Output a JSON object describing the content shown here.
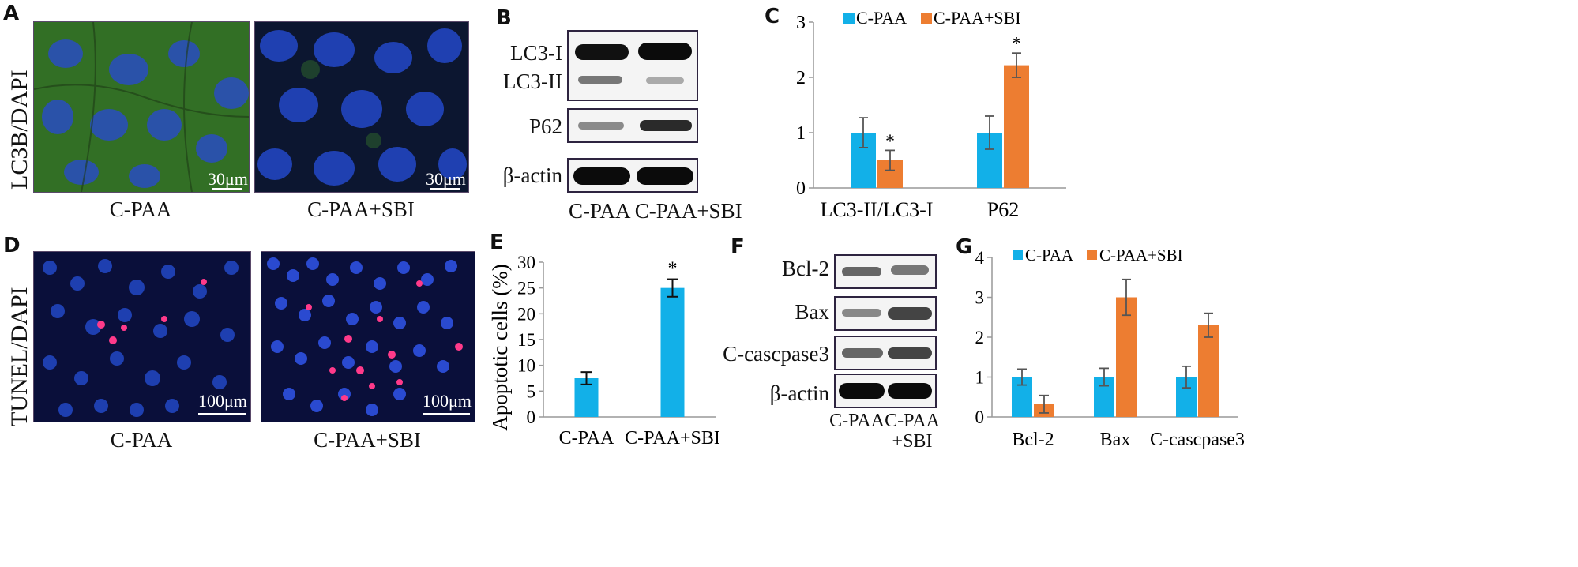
{
  "panels": {
    "A": {
      "letter": "A",
      "side_label": "LC3B/DAPI",
      "captions": [
        "C-PAA",
        "C-PAA+SBI"
      ],
      "scale_bars": [
        "30μm",
        "30μm"
      ]
    },
    "B": {
      "letter": "B",
      "bands": [
        "LC3-I",
        "LC3-II",
        "P62",
        "β-actin"
      ],
      "lanes": "C-PAA C-PAA+SBI"
    },
    "C": {
      "letter": "C"
    },
    "D": {
      "letter": "D",
      "side_label": "TUNEL/DAPI",
      "captions": [
        "C-PAA",
        "C-PAA+SBI"
      ],
      "scale_bars": [
        "100μm",
        "100μm"
      ]
    },
    "E": {
      "letter": "E"
    },
    "F": {
      "letter": "F",
      "bands": [
        "Bcl-2",
        "Bax",
        "C-cascpase3",
        "β-actin"
      ],
      "lanes": [
        "C-PAA",
        "C-PAA",
        "+SBI"
      ]
    },
    "G": {
      "letter": "G"
    }
  },
  "colors": {
    "blue": "#12b0e8",
    "orange": "#ed7d31",
    "fluor_green": "#3c8a2a",
    "nucleus_blue": "#1e3fb0",
    "tunel_red": "#ff3a8a"
  },
  "chart_data": [
    {
      "id": "C",
      "type": "bar",
      "categories": [
        "LC3-II/LC3-I",
        "P62"
      ],
      "series": [
        {
          "name": "C-PAA",
          "values": [
            1.0,
            1.0
          ],
          "errors": [
            0.27,
            0.3
          ]
        },
        {
          "name": "C-PAA+SBI",
          "values": [
            0.5,
            2.22
          ],
          "errors": [
            0.18,
            0.22
          ]
        }
      ],
      "significance": [
        [
          "",
          "*"
        ],
        [
          "",
          "*"
        ]
      ],
      "significance_mark": "*",
      "yticks": [
        "0",
        "1",
        "2",
        "3"
      ],
      "ylim": [
        0,
        3
      ],
      "legend": "top"
    },
    {
      "id": "E",
      "type": "bar",
      "categories": [
        "C-PAA",
        "C-PAA+SBI"
      ],
      "values": [
        7.5,
        25.0
      ],
      "errors": [
        1.2,
        1.7
      ],
      "significance_mark": "*",
      "ylabel": "Apoptotic cells (%)",
      "yticks": [
        "0",
        "5",
        "10",
        "15",
        "20",
        "25",
        "30"
      ],
      "ylim": [
        0,
        30
      ]
    },
    {
      "id": "G",
      "type": "bar",
      "categories": [
        "Bcl-2",
        "Bax",
        "C-cascpase3"
      ],
      "series": [
        {
          "name": "C-PAA",
          "values": [
            1.0,
            1.0,
            1.0
          ],
          "errors": [
            0.2,
            0.22,
            0.27
          ]
        },
        {
          "name": "C-PAA+SBI",
          "values": [
            0.32,
            3.0,
            2.3
          ],
          "errors": [
            0.22,
            0.45,
            0.3
          ]
        }
      ],
      "yticks": [
        "0",
        "1",
        "2",
        "3",
        "4"
      ],
      "ylim": [
        0,
        4
      ],
      "legend": "top"
    }
  ]
}
